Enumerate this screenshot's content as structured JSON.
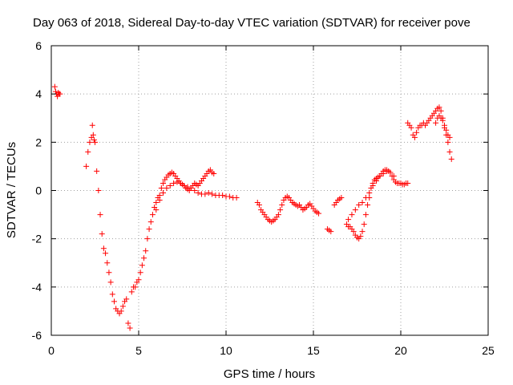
{
  "chart_data": {
    "type": "scatter",
    "title": "Day 063 of 2018, Sidereal Day-to-day VTEC variation (SDTVAR) for receiver pove",
    "xlabel": "GPS time / hours",
    "ylabel": "SDTVAR / TECUs",
    "xlim": [
      0,
      25
    ],
    "ylim": [
      -6,
      6
    ],
    "xticks": [
      0,
      5,
      10,
      15,
      20,
      25
    ],
    "yticks": [
      -6,
      -4,
      -2,
      0,
      2,
      4,
      6
    ],
    "grid": true,
    "marker": "plus",
    "series_color": "#ff0000",
    "series": [
      {
        "x": [
          0.2,
          0.25,
          0.3,
          0.35,
          0.4,
          0.45,
          0.5
        ],
        "y": [
          4.3,
          4.1,
          4.0,
          3.9,
          4.05,
          4.0,
          4.0
        ]
      },
      {
        "x": [
          2.0,
          2.1,
          2.2,
          2.3,
          2.35,
          2.4,
          2.45,
          2.5,
          2.6,
          2.7,
          2.8,
          2.9,
          3.0,
          3.1,
          3.2,
          3.3,
          3.4,
          3.5,
          3.6,
          3.7,
          3.8,
          3.9,
          4.0,
          4.1,
          4.2,
          4.3,
          4.4,
          4.5,
          4.6,
          4.7,
          4.8,
          4.9,
          5.0,
          5.1,
          5.2,
          5.3,
          5.4,
          5.5,
          5.6,
          5.7,
          5.8,
          5.9,
          6.0,
          6.1,
          6.2,
          6.3,
          6.4,
          6.5,
          6.6,
          6.7,
          6.8,
          6.9,
          7.0,
          7.1,
          7.2,
          7.3,
          7.4,
          7.5,
          7.6,
          7.7,
          7.8,
          7.9,
          8.0,
          8.1,
          8.2,
          8.3,
          8.4,
          8.5,
          8.6,
          8.7,
          8.8,
          8.9,
          9.0,
          9.1,
          9.2,
          9.3
        ],
        "y": [
          1.0,
          1.6,
          2.0,
          2.2,
          2.7,
          2.3,
          2.1,
          2.0,
          0.8,
          0.0,
          -1.0,
          -1.8,
          -2.4,
          -2.6,
          -3.0,
          -3.4,
          -3.8,
          -4.3,
          -4.6,
          -4.9,
          -5.0,
          -5.1,
          -5.0,
          -4.8,
          -4.6,
          -4.5,
          -5.5,
          -5.7,
          -4.2,
          -4.0,
          -4.0,
          -3.8,
          -3.7,
          -3.4,
          -3.1,
          -2.8,
          -2.5,
          -2.0,
          -1.6,
          -1.3,
          -1.0,
          -0.7,
          -0.5,
          -0.3,
          -0.2,
          0.1,
          0.3,
          0.45,
          0.55,
          0.65,
          0.7,
          0.75,
          0.7,
          0.6,
          0.5,
          0.4,
          0.3,
          0.25,
          0.2,
          0.1,
          0.05,
          0.0,
          0.1,
          0.2,
          0.3,
          0.25,
          0.2,
          0.3,
          0.4,
          0.5,
          0.6,
          0.7,
          0.8,
          0.85,
          0.75,
          0.7
        ]
      },
      {
        "x": [
          6.0,
          6.2,
          6.4,
          6.6,
          6.8,
          7.0,
          7.2,
          7.4,
          7.6,
          7.8,
          8.0,
          8.2,
          8.4,
          8.6,
          8.8,
          9.0,
          9.2,
          9.4,
          9.6,
          9.8,
          10.0,
          10.2,
          10.4,
          10.6
        ],
        "y": [
          -0.8,
          -0.4,
          -0.1,
          0.1,
          0.2,
          0.3,
          0.35,
          0.3,
          0.2,
          0.15,
          0.1,
          0.0,
          -0.1,
          -0.15,
          -0.15,
          -0.1,
          -0.15,
          -0.2,
          -0.2,
          -0.2,
          -0.25,
          -0.25,
          -0.3,
          -0.3
        ]
      },
      {
        "x": [
          11.8,
          11.9,
          12.0,
          12.1,
          12.2,
          12.3,
          12.4,
          12.5,
          12.6,
          12.7,
          12.8,
          12.9,
          13.0,
          13.1,
          13.2,
          13.3,
          13.4,
          13.5,
          13.6,
          13.7,
          13.8,
          13.9,
          14.0,
          14.1,
          14.2,
          14.3,
          14.4,
          14.5,
          14.6,
          14.7,
          14.8,
          14.9,
          15.0,
          15.1,
          15.2,
          15.3
        ],
        "y": [
          -0.5,
          -0.6,
          -0.8,
          -0.9,
          -1.0,
          -1.1,
          -1.2,
          -1.25,
          -1.3,
          -1.25,
          -1.2,
          -1.1,
          -1.0,
          -0.8,
          -0.6,
          -0.4,
          -0.3,
          -0.25,
          -0.3,
          -0.4,
          -0.5,
          -0.55,
          -0.6,
          -0.65,
          -0.6,
          -0.7,
          -0.8,
          -0.75,
          -0.7,
          -0.6,
          -0.55,
          -0.65,
          -0.75,
          -0.85,
          -0.9,
          -0.95
        ]
      },
      {
        "x": [
          15.8,
          15.9,
          16.0,
          16.2,
          16.3,
          16.4,
          16.5,
          16.6
        ],
        "y": [
          -1.6,
          -1.65,
          -1.7,
          -0.6,
          -0.5,
          -0.4,
          -0.35,
          -0.3
        ]
      },
      {
        "x": [
          16.9,
          17.0,
          17.1,
          17.2,
          17.3,
          17.4,
          17.5,
          17.6,
          17.7,
          17.8,
          17.9,
          18.0,
          18.1,
          18.2,
          18.3,
          18.4,
          18.5,
          18.6,
          18.7,
          18.8,
          18.9,
          19.0,
          19.1,
          19.2,
          19.3,
          19.4,
          19.5,
          19.6,
          19.7,
          19.8,
          19.9,
          20.0,
          20.1,
          20.2,
          20.3,
          20.4
        ],
        "y": [
          -1.4,
          -1.5,
          -1.5,
          -1.6,
          -1.7,
          -1.85,
          -1.95,
          -2.0,
          -1.9,
          -1.7,
          -1.4,
          -1.0,
          -0.6,
          -0.3,
          0.1,
          0.3,
          0.45,
          0.5,
          0.55,
          0.6,
          0.7,
          0.8,
          0.85,
          0.85,
          0.8,
          0.75,
          0.6,
          0.45,
          0.35,
          0.3,
          0.3,
          0.3,
          0.25,
          0.25,
          0.3,
          0.3
        ]
      },
      {
        "x": [
          17.0,
          17.2,
          17.4,
          17.6,
          17.8,
          18.0,
          18.2,
          18.4,
          18.6,
          18.8,
          19.0,
          19.2,
          19.4,
          19.6
        ],
        "y": [
          -1.2,
          -1.0,
          -0.8,
          -0.6,
          -0.5,
          -0.3,
          -0.1,
          0.2,
          0.4,
          0.6,
          0.7,
          0.8,
          0.75,
          0.6
        ]
      },
      {
        "x": [
          20.4,
          20.5,
          20.6,
          20.7,
          20.8,
          20.9,
          21.0,
          21.1,
          21.2,
          21.3,
          21.4,
          21.5,
          21.6,
          21.7,
          21.8,
          21.9,
          22.0,
          22.1,
          22.2,
          22.3,
          22.4,
          22.5,
          22.6,
          22.7,
          22.8,
          22.9
        ],
        "y": [
          2.8,
          2.7,
          2.6,
          2.3,
          2.2,
          2.4,
          2.6,
          2.7,
          2.7,
          2.8,
          2.7,
          2.8,
          2.9,
          3.0,
          3.1,
          3.2,
          3.3,
          3.4,
          3.45,
          3.3,
          3.0,
          2.6,
          2.3,
          2.0,
          1.6,
          1.3
        ]
      },
      {
        "x": [
          22.0,
          22.1,
          22.2,
          22.3,
          22.4,
          22.5,
          22.6,
          22.7,
          22.8
        ],
        "y": [
          2.8,
          3.0,
          3.1,
          3.0,
          2.9,
          2.7,
          2.5,
          2.3,
          2.2
        ]
      }
    ]
  }
}
